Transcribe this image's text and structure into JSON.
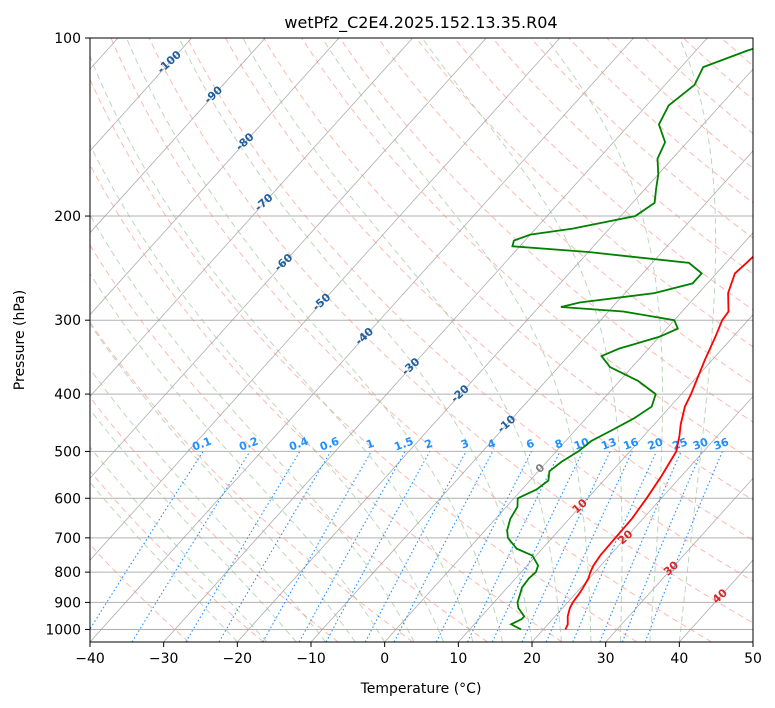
{
  "chart_data": {
    "type": "line",
    "title": "wetPf2_C2E4.2025.152.13.35.R04",
    "xlabel": "Temperature (°C)",
    "ylabel": "Pressure (hPa)",
    "xlim": [
      -40,
      50
    ],
    "ylim": [
      1050,
      100
    ],
    "y_scale": "log",
    "grid": true,
    "x_ticks": [
      -40,
      -30,
      -20,
      -10,
      0,
      10,
      20,
      30,
      40,
      50
    ],
    "y_ticks": [
      100,
      200,
      300,
      400,
      500,
      600,
      700,
      800,
      900,
      1000
    ],
    "series": [
      {
        "color": "#ff0000",
        "points": [
          [
            1000,
            23.0
          ],
          [
            980,
            22.7
          ],
          [
            950,
            21.7
          ],
          [
            920,
            21.0
          ],
          [
            900,
            20.7
          ],
          [
            870,
            20.5
          ],
          [
            850,
            20.3
          ],
          [
            820,
            19.9
          ],
          [
            800,
            19.4
          ],
          [
            780,
            19.0
          ],
          [
            750,
            18.7
          ],
          [
            700,
            18.6
          ],
          [
            650,
            18.5
          ],
          [
            600,
            18.0
          ],
          [
            550,
            17.3
          ],
          [
            500,
            16.3
          ],
          [
            470,
            14.8
          ],
          [
            450,
            13.6
          ],
          [
            420,
            12.0
          ],
          [
            400,
            11.3
          ],
          [
            350,
            9.0
          ],
          [
            320,
            7.6
          ],
          [
            300,
            6.5
          ],
          [
            290,
            6.3
          ],
          [
            270,
            4.0
          ],
          [
            250,
            2.5
          ],
          [
            240,
            2.8
          ],
          [
            220,
            3.3
          ],
          [
            200,
            1.4
          ],
          [
            180,
            -1.0
          ],
          [
            170,
            -2.5
          ],
          [
            160,
            -2.2
          ],
          [
            150,
            0.3
          ],
          [
            140,
            3.0
          ],
          [
            130,
            5.8
          ],
          [
            120,
            8.2
          ],
          [
            110,
            9.9
          ],
          [
            105,
            10.8
          ],
          [
            100,
            11.5
          ]
        ]
      },
      {
        "color": "#008000",
        "points": [
          [
            1000,
            17.0
          ],
          [
            980,
            15.0
          ],
          [
            960,
            15.8
          ],
          [
            950,
            15.8
          ],
          [
            920,
            14.0
          ],
          [
            900,
            13.2
          ],
          [
            870,
            12.5
          ],
          [
            850,
            12.0
          ],
          [
            820,
            11.8
          ],
          [
            800,
            12.0
          ],
          [
            780,
            11.5
          ],
          [
            750,
            9.5
          ],
          [
            730,
            6.5
          ],
          [
            700,
            4.0
          ],
          [
            680,
            3.0
          ],
          [
            650,
            2.0
          ],
          [
            620,
            1.5
          ],
          [
            600,
            0.5
          ],
          [
            580,
            2.0
          ],
          [
            560,
            2.5
          ],
          [
            540,
            1.5
          ],
          [
            520,
            2.0
          ],
          [
            500,
            3.0
          ],
          [
            480,
            3.5
          ],
          [
            460,
            5.0
          ],
          [
            440,
            6.5
          ],
          [
            420,
            7.5
          ],
          [
            400,
            6.5
          ],
          [
            380,
            2.5
          ],
          [
            360,
            -3.0
          ],
          [
            345,
            -5.5
          ],
          [
            335,
            -4.0
          ],
          [
            320,
            0.0
          ],
          [
            310,
            1.5
          ],
          [
            300,
            0.0
          ],
          [
            290,
            -8.0
          ],
          [
            285,
            -17.0
          ],
          [
            280,
            -15.0
          ],
          [
            270,
            -6.0
          ],
          [
            260,
            -2.0
          ],
          [
            250,
            -2.0
          ],
          [
            240,
            -5.0
          ],
          [
            230,
            -20.0
          ],
          [
            225,
            -31.0
          ],
          [
            220,
            -31.5
          ],
          [
            215,
            -30.0
          ],
          [
            210,
            -25.0
          ],
          [
            200,
            -18.0
          ],
          [
            190,
            -17.0
          ],
          [
            180,
            -18.5
          ],
          [
            170,
            -20.0
          ],
          [
            160,
            -22.0
          ],
          [
            150,
            -23.0
          ],
          [
            140,
            -26.0
          ],
          [
            130,
            -27.0
          ],
          [
            120,
            -26.0
          ],
          [
            112,
            -27.0
          ],
          [
            105,
            -23.0
          ],
          [
            100,
            -19.0
          ]
        ]
      }
    ],
    "dry_adiabat_labels": [
      "-100",
      "-90",
      "-80",
      "-70",
      "-60",
      "-50",
      "-40",
      "-30",
      "-20",
      "-10",
      "0",
      "10",
      "20",
      "30",
      "40"
    ],
    "mixing_ratio_labels": [
      "0.1",
      "0.2",
      "0.4",
      "0.6",
      "1",
      "1.5",
      "2",
      "3",
      "4",
      "6",
      "8",
      "10",
      "13",
      "16",
      "20",
      "25",
      "30",
      "36"
    ]
  },
  "colors": {
    "temperature": "#ff0000",
    "dewpoint": "#008000",
    "dry_adiabat": "#fa8072",
    "moist_adiabat": "#8fbc8f",
    "mixing_ratio": "#1e90ff",
    "isotherm": "#999999",
    "dry_adiabat_label_cold": "#1f5fa0",
    "dry_adiabat_label_warm": "#d62728"
  }
}
